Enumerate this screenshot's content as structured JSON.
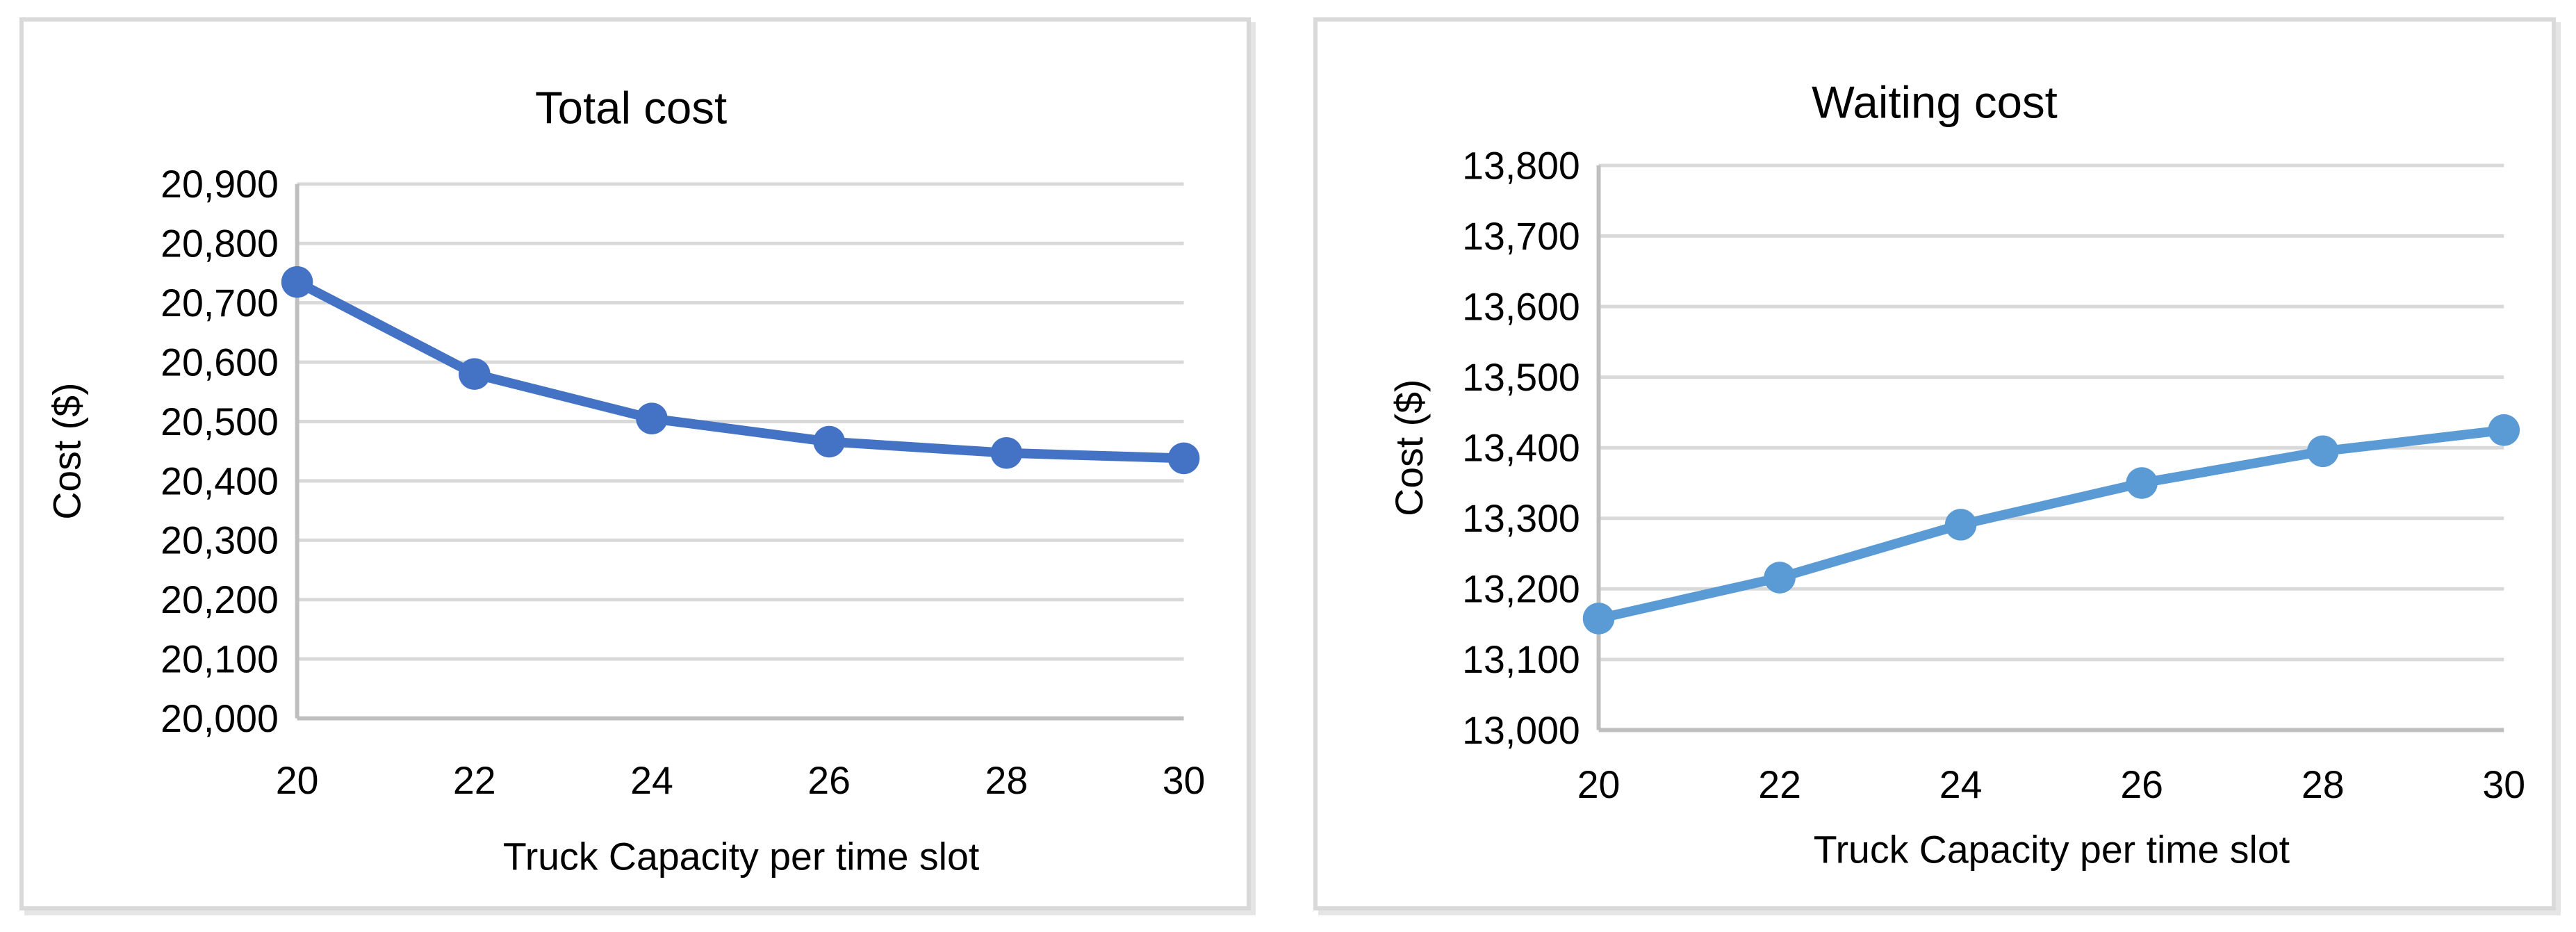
{
  "page": {
    "background_color": "#ffffff",
    "panel_border_color": "#d9d9d9"
  },
  "chart_data": [
    {
      "type": "line",
      "title": "Total cost",
      "xlabel": "Truck Capacity per time slot",
      "ylabel": "Cost ($)",
      "x": [
        20,
        22,
        24,
        26,
        28,
        30
      ],
      "x_tick_labels": [
        "20",
        "22",
        "24",
        "26",
        "28",
        "30"
      ],
      "series": [
        {
          "name": "Total cost",
          "color": "#4472C4",
          "values": [
            20735,
            20580,
            20505,
            20466,
            20447,
            20438
          ]
        }
      ],
      "ylim": [
        20000,
        20900
      ],
      "xlim": [
        20,
        30
      ],
      "yticks": [
        20000,
        20100,
        20200,
        20300,
        20400,
        20500,
        20600,
        20700,
        20800,
        20900
      ],
      "ytick_labels": [
        "20,000",
        "20,100",
        "20,200",
        "20,300",
        "20,400",
        "20,500",
        "20,600",
        "20,700",
        "20,800",
        "20,900"
      ],
      "grid": true,
      "legend": "none",
      "grid_color": "#d9d9d9",
      "axis_color": "#bfbfbf",
      "text_color": "#000000"
    },
    {
      "type": "line",
      "title": "Waiting cost",
      "xlabel": "Truck Capacity per time slot",
      "ylabel": "Cost ($)",
      "x": [
        20,
        22,
        24,
        26,
        28,
        30
      ],
      "x_tick_labels": [
        "20",
        "22",
        "24",
        "26",
        "28",
        "30"
      ],
      "series": [
        {
          "name": "Waiting cost",
          "color": "#5B9BD5",
          "values": [
            13158,
            13216,
            13291,
            13350,
            13395,
            13425
          ]
        }
      ],
      "ylim": [
        13000,
        13800
      ],
      "xlim": [
        20,
        30
      ],
      "yticks": [
        13000,
        13100,
        13200,
        13300,
        13400,
        13500,
        13600,
        13700,
        13800
      ],
      "ytick_labels": [
        "13,000",
        "13,100",
        "13,200",
        "13,300",
        "13,400",
        "13,500",
        "13,600",
        "13,700",
        "13,800"
      ],
      "grid": true,
      "legend": "none",
      "grid_color": "#d9d9d9",
      "axis_color": "#bfbfbf",
      "text_color": "#000000"
    }
  ]
}
